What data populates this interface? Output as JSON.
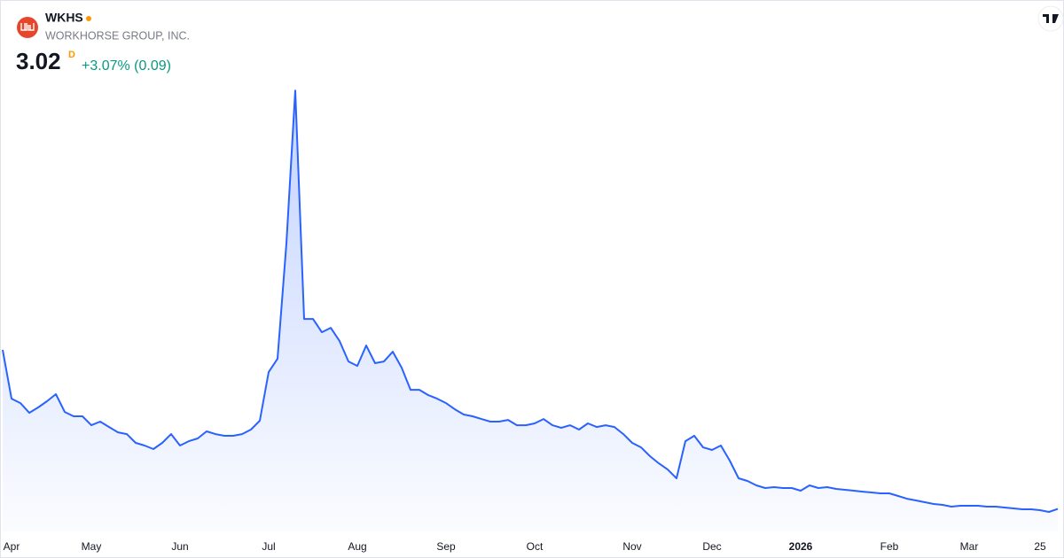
{
  "header": {
    "symbol": "WKHS",
    "name": "WORKHORSE GROUP, INC.",
    "price": "3.02",
    "interval": "D",
    "change": "+3.07% (0.09)"
  },
  "chart_data": {
    "type": "area",
    "color": "#2962ff",
    "ylim": [
      0,
      60
    ],
    "categories": [
      null,
      "Apr",
      null,
      null,
      null,
      null,
      null,
      null,
      null,
      null,
      "May",
      null,
      null,
      null,
      null,
      null,
      null,
      null,
      null,
      null,
      "Jun",
      null,
      null,
      null,
      null,
      null,
      null,
      null,
      null,
      null,
      "Jul",
      null,
      null,
      null,
      null,
      null,
      null,
      null,
      null,
      null,
      "Aug",
      null,
      null,
      null,
      null,
      null,
      null,
      null,
      null,
      null,
      "Sep",
      null,
      null,
      null,
      null,
      null,
      null,
      null,
      null,
      null,
      "Oct",
      null,
      null,
      null,
      null,
      null,
      null,
      null,
      null,
      null,
      null,
      "Nov",
      null,
      null,
      null,
      null,
      null,
      null,
      null,
      null,
      "Dec",
      null,
      null,
      null,
      null,
      null,
      null,
      null,
      null,
      null,
      "2026",
      null,
      null,
      null,
      null,
      null,
      null,
      null,
      null,
      null,
      "Feb",
      null,
      null,
      null,
      null,
      null,
      null,
      null,
      null,
      "Mar",
      null,
      null,
      null,
      null,
      null,
      null,
      null,
      "25",
      null,
      null
    ],
    "values": [
      24.35,
      17.81,
      17.22,
      15.91,
      16.63,
      17.46,
      18.41,
      16.03,
      15.44,
      15.44,
      14.25,
      14.73,
      14.01,
      13.3,
      13.06,
      11.88,
      11.52,
      11.05,
      11.88,
      13.06,
      11.52,
      12.11,
      12.47,
      13.42,
      13.06,
      12.83,
      12.83,
      13.06,
      13.66,
      14.85,
      21.38,
      23.16,
      38.6,
      59.14,
      28.5,
      28.5,
      26.72,
      27.32,
      25.53,
      22.8,
      22.21,
      24.94,
      22.57,
      22.8,
      24.11,
      21.97,
      19.0,
      19.0,
      18.29,
      17.81,
      17.22,
      16.39,
      15.68,
      15.44,
      15.08,
      14.73,
      14.73,
      14.96,
      14.25,
      14.25,
      14.49,
      15.08,
      14.25,
      13.9,
      14.25,
      13.66,
      14.49,
      14.01,
      14.25,
      14.01,
      13.06,
      11.88,
      11.28,
      10.1,
      9.14,
      8.31,
      7.13,
      12.11,
      12.83,
      11.28,
      10.93,
      11.52,
      9.5,
      7.13,
      6.77,
      6.18,
      5.82,
      5.94,
      5.82,
      5.82,
      5.46,
      6.18,
      5.82,
      5.94,
      5.7,
      5.58,
      5.46,
      5.34,
      5.23,
      5.11,
      5.11,
      4.75,
      4.39,
      4.16,
      3.92,
      3.68,
      3.56,
      3.33,
      3.44,
      3.44,
      3.44,
      3.33,
      3.33,
      3.21,
      3.09,
      2.97,
      2.97,
      2.85,
      2.61,
      3.02
    ]
  }
}
